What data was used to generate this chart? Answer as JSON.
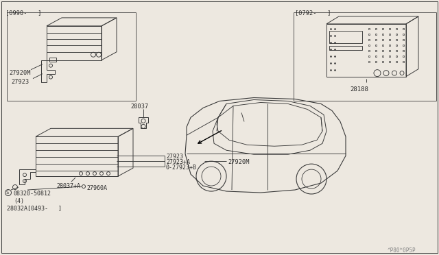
{
  "bg_color": "#ede8e0",
  "line_color": "#3a3a3a",
  "text_color": "#2a2a2a",
  "watermark": "^P80*0P5P",
  "label_0990": "[0990-   ]",
  "label_0792": "[0792-   ]",
  "parts": {
    "27920M_top": "27920M",
    "27923_top": "27923",
    "28037": "28037",
    "27923_btm": "27923",
    "27923A": "27923+A",
    "27923B": "0-27923+B",
    "27920M_btm": "27920M",
    "28037A": "28037+A",
    "27960A": "27960A",
    "08320": "08320-50812",
    "08320_qty": "(4)",
    "28032A": "28032A[0493-   ]",
    "28188": "28188"
  }
}
